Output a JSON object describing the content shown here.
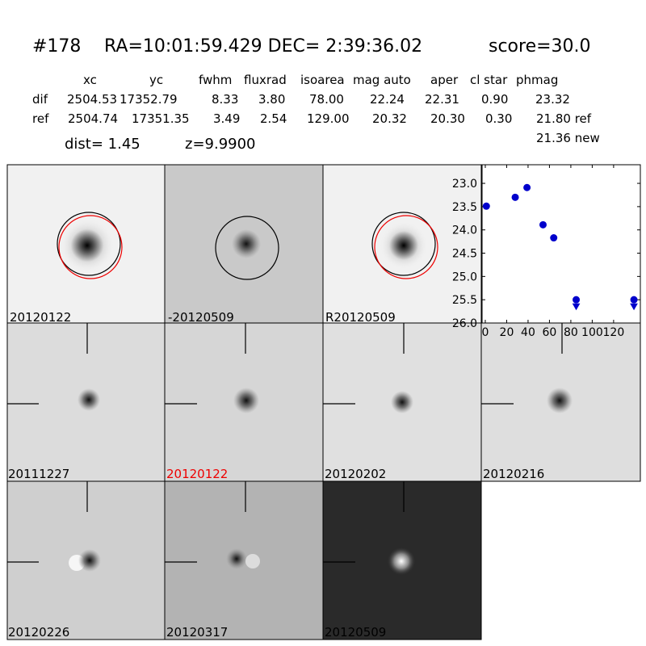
{
  "header": {
    "id": "#178",
    "coords": "RA=10:01:59.429 DEC= 2:39:36.02",
    "score": "score=30.0",
    "dist": "dist=  1.45",
    "z": "z=9.9900"
  },
  "table": {
    "columns": [
      "xc",
      "yc",
      "fwhm",
      "fluxrad",
      "isoarea",
      "mag auto",
      "aper",
      "cl star",
      "phmag"
    ],
    "rows": [
      [
        "dif",
        "2504.53",
        "17352.79",
        "8.33",
        "3.80",
        "78.00",
        "22.24",
        "22.31",
        "0.90",
        "23.32"
      ],
      [
        "ref",
        "2504.74",
        "17351.35",
        "3.49",
        "2.54",
        "129.00",
        "20.32",
        "20.30",
        "0.30",
        "21.80 ref"
      ]
    ],
    "extra": "21.36 new"
  },
  "stamps": [
    {
      "label": "20120122"
    },
    {
      "label": "-20120509"
    },
    {
      "label": "R20120509"
    },
    {
      "label": "20111227"
    },
    {
      "label": "20120122"
    },
    {
      "label": "20120202"
    },
    {
      "label": "20120216"
    },
    {
      "label": "20120226"
    },
    {
      "label": "20120317"
    },
    {
      "label": "20120509"
    }
  ],
  "chart_data": {
    "type": "scatter",
    "series": [
      {
        "color": "#0000cc",
        "marker": "circle",
        "x": [
          1,
          28,
          39,
          54,
          64,
          85,
          139
        ],
        "values": [
          23.49,
          23.3,
          23.09,
          23.89,
          24.17,
          25.5,
          25.5
        ]
      },
      {
        "color": "#0000cc",
        "marker": "triangle-down",
        "x": [
          85,
          139
        ],
        "values": [
          25.64,
          25.64
        ]
      }
    ],
    "xlim": [
      -3,
      145
    ],
    "xticks": [
      0,
      20,
      40,
      60,
      80,
      100,
      120
    ],
    "ylim": [
      26.0,
      22.6
    ],
    "yticks": [
      {
        "value": 23.0,
        "label": "23.0"
      },
      {
        "value": 23.5,
        "label": "23.5"
      },
      {
        "value": 24.0,
        "label": "24.0"
      },
      {
        "value": 24.5,
        "label": "24.5"
      },
      {
        "value": 25.0,
        "label": "25.0"
      },
      {
        "value": 25.5,
        "label": "25.5"
      },
      {
        "value": 26.0,
        "label": "26.0"
      }
    ]
  }
}
